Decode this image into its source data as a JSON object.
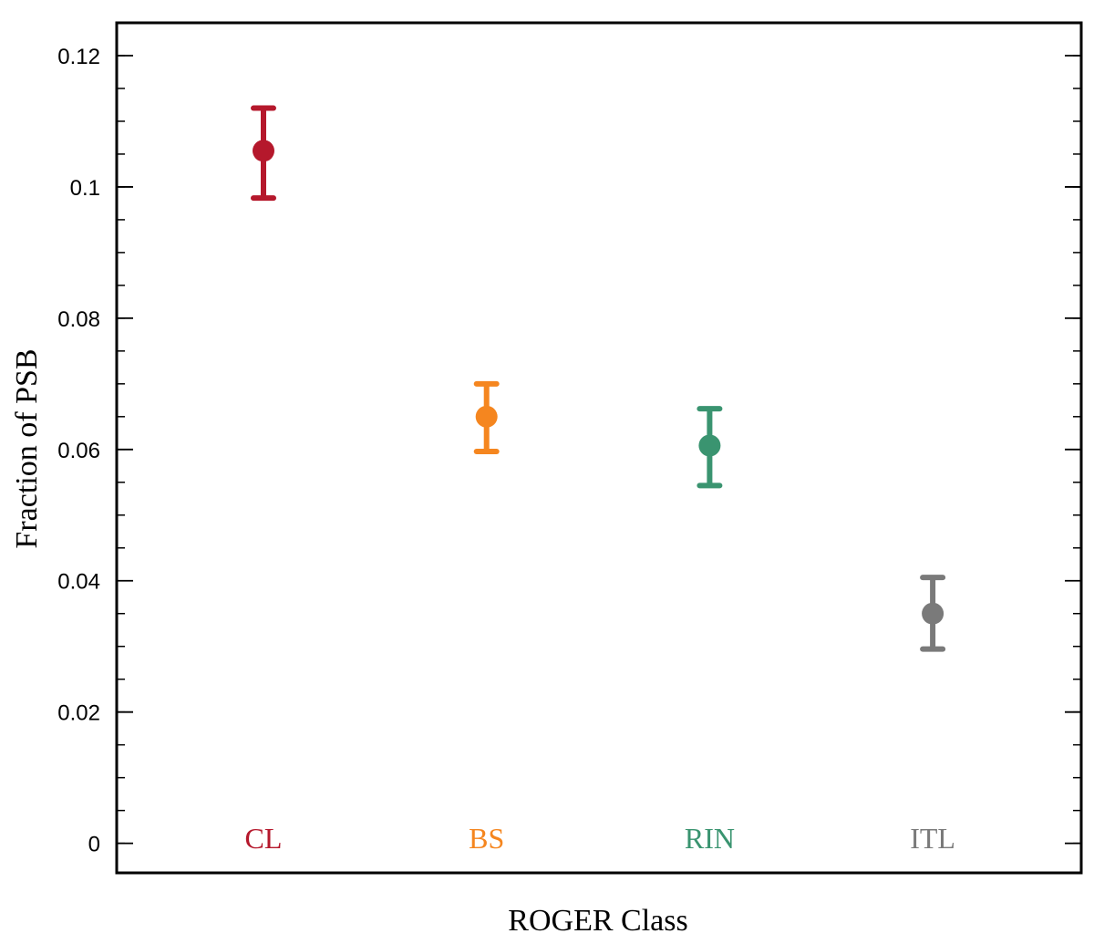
{
  "chart_data": {
    "type": "scatter",
    "title": "",
    "xlabel": "ROGER Class",
    "ylabel": "Fraction of PSB",
    "ylim": [
      -0.0045,
      0.125
    ],
    "yticks": [
      {
        "value": 0,
        "label": "0"
      },
      {
        "value": 0.02,
        "label": "0.02"
      },
      {
        "value": 0.04,
        "label": "0.04"
      },
      {
        "value": 0.06,
        "label": "0.06"
      },
      {
        "value": 0.08,
        "label": "0.08"
      },
      {
        "value": 0.1,
        "label": "0.1"
      },
      {
        "value": 0.12,
        "label": "0.12"
      }
    ],
    "yminor_step": 0.005,
    "grid": false,
    "legend": "none",
    "categories": [
      "CL",
      "BS",
      "RIN",
      "ITL"
    ],
    "points": [
      {
        "category": "CL",
        "y": 0.1055,
        "err_low": 0.0983,
        "err_high": 0.112,
        "color": "#B5182C"
      },
      {
        "category": "BS",
        "y": 0.065,
        "err_low": 0.0597,
        "err_high": 0.07,
        "color": "#F5861F"
      },
      {
        "category": "RIN",
        "y": 0.0606,
        "err_low": 0.0545,
        "err_high": 0.0662,
        "color": "#3A9470"
      },
      {
        "category": "ITL",
        "y": 0.035,
        "err_low": 0.0296,
        "err_high": 0.0405,
        "color": "#7A7A7A"
      }
    ]
  }
}
